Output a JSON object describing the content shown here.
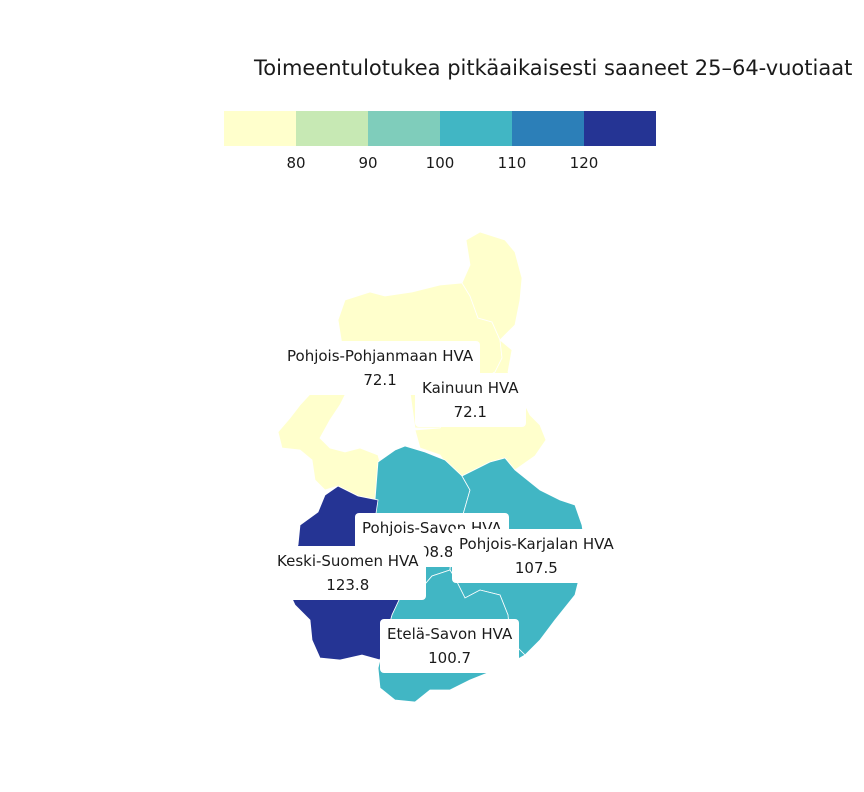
{
  "title": "Toimeentulotukea pitkäaikaisesti saaneet 25–64-vuotiaat",
  "legend": {
    "colors": [
      "#ffffcc",
      "#c7e9b4",
      "#7fcdbb",
      "#41b6c4",
      "#2c7fb8",
      "#253494"
    ],
    "ticks": [
      "80",
      "90",
      "100",
      "110",
      "120"
    ]
  },
  "regions": [
    {
      "name": "Pohjois-Pohjanmaan HVA",
      "value": "72.1",
      "color": "#ffffcc"
    },
    {
      "name": "Kainuun HVA",
      "value": "72.1",
      "color": "#ffffcc"
    },
    {
      "name": "Pohjois-Savon HVA",
      "value": "108.8",
      "color": "#41b6c4"
    },
    {
      "name": "Pohjois-Karjalan HVA",
      "value": "107.5",
      "color": "#41b6c4"
    },
    {
      "name": "Keski-Suomen HVA",
      "value": "123.8",
      "color": "#253494"
    },
    {
      "name": "Etelä-Savon HVA",
      "value": "100.7",
      "color": "#41b6c4"
    }
  ]
}
